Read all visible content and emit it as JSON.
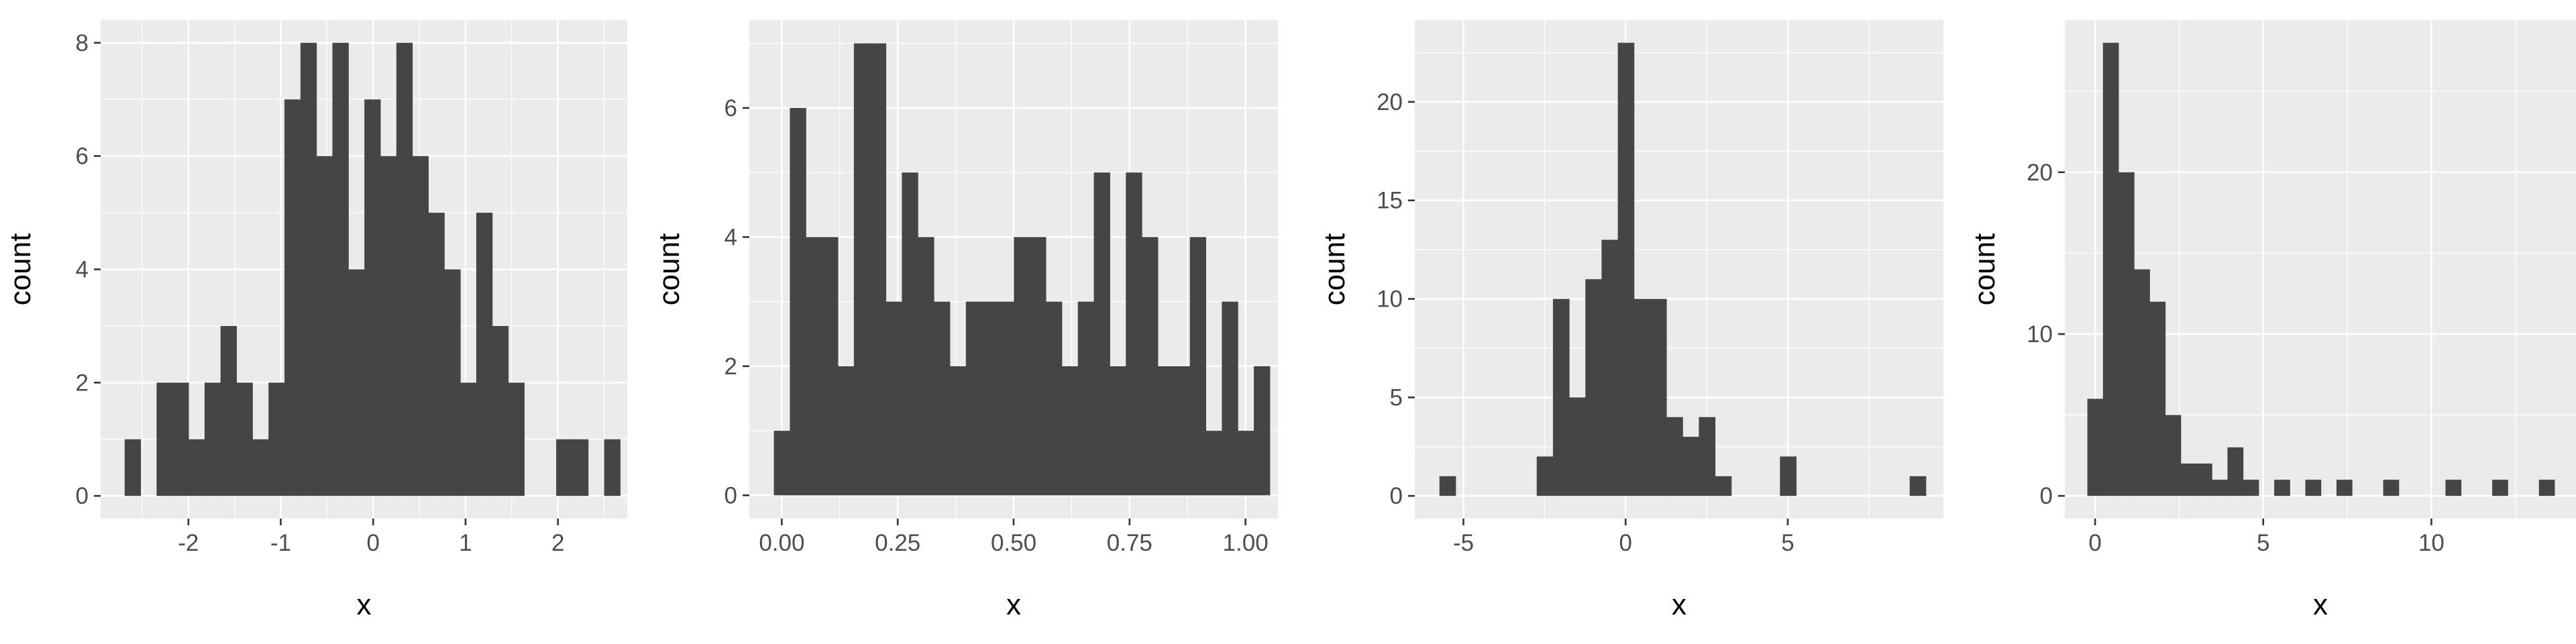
{
  "chart_data": [
    {
      "type": "bar",
      "xlabel": "x",
      "ylabel": "count",
      "x_start": -2.69,
      "bin_width": 0.173,
      "values": [
        1,
        0,
        2,
        2,
        1,
        2,
        3,
        2,
        1,
        2,
        7,
        8,
        6,
        8,
        4,
        7,
        6,
        8,
        6,
        5,
        4,
        2,
        5,
        3,
        2,
        0,
        0,
        1,
        1,
        0,
        1
      ],
      "xlim": [
        -2.95,
        2.75
      ],
      "ylim": [
        -0.4,
        8.4
      ],
      "xticks": [
        -2,
        -1,
        0,
        1,
        2
      ],
      "xtick_labels": [
        "-2",
        "-1",
        "0",
        "1",
        "2"
      ],
      "yticks": [
        0,
        2,
        4,
        6,
        8
      ],
      "ytick_labels": [
        "0",
        "2",
        "4",
        "6",
        "8"
      ]
    },
    {
      "type": "bar",
      "xlabel": "x",
      "ylabel": "count",
      "x_start": -0.017,
      "bin_width": 0.0345,
      "values": [
        1,
        6,
        4,
        4,
        2,
        7,
        7,
        3,
        5,
        4,
        3,
        2,
        3,
        3,
        3,
        4,
        4,
        3,
        2,
        3,
        5,
        2,
        5,
        4,
        2,
        2,
        4,
        1,
        3,
        1,
        2
      ],
      "xlim": [
        -0.07,
        1.07
      ],
      "ylim": [
        -0.36,
        7.36
      ],
      "xticks": [
        0,
        0.25,
        0.5,
        0.75,
        1.0
      ],
      "xtick_labels": [
        "0.00",
        "0.25",
        "0.50",
        "0.75",
        "1.00"
      ],
      "yticks": [
        0,
        2,
        4,
        6
      ],
      "ytick_labels": [
        "0",
        "2",
        "4",
        "6"
      ]
    },
    {
      "type": "bar",
      "xlabel": "x",
      "ylabel": "count",
      "x_start": -5.74,
      "bin_width": 0.5,
      "values": [
        1,
        0,
        0,
        0,
        0,
        0,
        2,
        10,
        5,
        11,
        13,
        23,
        10,
        10,
        4,
        3,
        4,
        1,
        0,
        0,
        0,
        2,
        0,
        0,
        0,
        0,
        0,
        0,
        0,
        1
      ],
      "xlim": [
        -6.5,
        9.8
      ],
      "ylim": [
        -1.15,
        24.15
      ],
      "xticks": [
        -5,
        0,
        5
      ],
      "xtick_labels": [
        "-5",
        "0",
        "5"
      ],
      "yticks": [
        0,
        5,
        10,
        15,
        20
      ],
      "ytick_labels": [
        "0",
        "5",
        "10",
        "15",
        "20"
      ]
    },
    {
      "type": "bar",
      "xlabel": "x",
      "ylabel": "count",
      "x_start": -0.23,
      "bin_width": 0.463,
      "values": [
        6,
        28,
        20,
        14,
        12,
        5,
        2,
        2,
        1,
        3,
        1,
        0,
        1,
        0,
        1,
        0,
        1,
        0,
        0,
        1,
        0,
        0,
        0,
        1,
        0,
        0,
        1,
        0,
        0,
        1
      ],
      "xlim": [
        -0.9,
        14.3
      ],
      "ylim": [
        -1.4,
        29.4
      ],
      "xticks": [
        0,
        5,
        10
      ],
      "xtick_labels": [
        "0",
        "5",
        "10"
      ],
      "yticks": [
        0,
        10,
        20
      ],
      "ytick_labels": [
        "0",
        "10",
        "20"
      ]
    }
  ]
}
